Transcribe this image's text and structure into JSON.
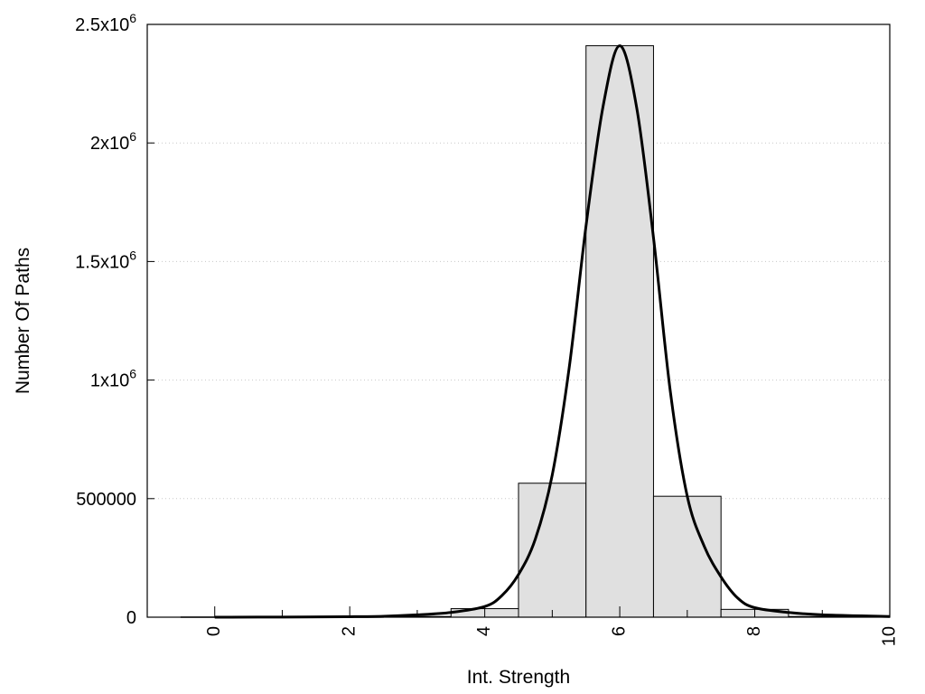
{
  "chart_data": {
    "type": "bar",
    "xlabel": "Int. Strength",
    "ylabel": "Number Of Paths",
    "xlim": [
      -1,
      10
    ],
    "ylim": [
      0,
      2500000
    ],
    "grid": "horizontal dotted",
    "x_ticks": [
      {
        "value": 0,
        "label": "0"
      },
      {
        "value": 2,
        "label": "2"
      },
      {
        "value": 4,
        "label": "4"
      },
      {
        "value": 6,
        "label": "6"
      },
      {
        "value": 8,
        "label": "8"
      },
      {
        "value": 10,
        "label": "10"
      }
    ],
    "y_ticks": [
      {
        "value": 0,
        "base": "0",
        "exp": ""
      },
      {
        "value": 500000,
        "base": "500000",
        "exp": ""
      },
      {
        "value": 1000000,
        "base": "1x10",
        "exp": "6"
      },
      {
        "value": 1500000,
        "base": "1.5x10",
        "exp": "6"
      },
      {
        "value": 2000000,
        "base": "2x10",
        "exp": "6"
      },
      {
        "value": 2500000,
        "base": "2.5x10",
        "exp": "6"
      }
    ],
    "bins": [
      {
        "x": 0,
        "value": 1000
      },
      {
        "x": 1,
        "value": 1000
      },
      {
        "x": 2,
        "value": 1500
      },
      {
        "x": 3,
        "value": 3000
      },
      {
        "x": 4,
        "value": 36000
      },
      {
        "x": 5,
        "value": 565000
      },
      {
        "x": 6,
        "value": 2410000
      },
      {
        "x": 7,
        "value": 510000
      },
      {
        "x": 8,
        "value": 33000
      },
      {
        "x": 9,
        "value": 3000
      }
    ],
    "bin_width": 1,
    "fit_curve": {
      "x": [
        0,
        1,
        2,
        2.5,
        3,
        3.5,
        4,
        4.25,
        4.5,
        4.75,
        5,
        5.25,
        5.5,
        5.75,
        6,
        6.25,
        6.5,
        6.75,
        7,
        7.25,
        7.5,
        7.75,
        8,
        8.5,
        9,
        10
      ],
      "y": [
        0,
        500,
        2000,
        4000,
        10000,
        20000,
        45000,
        90000,
        180000,
        330000,
        600000,
        1050000,
        1650000,
        2150000,
        2410000,
        2150000,
        1600000,
        950000,
        510000,
        300000,
        170000,
        80000,
        40000,
        20000,
        10000,
        3000
      ]
    },
    "colors": {
      "bar_fill": "#e0e0e0",
      "bar_stroke": "#000000",
      "curve": "#000000",
      "grid": "#c8c8c8"
    }
  }
}
